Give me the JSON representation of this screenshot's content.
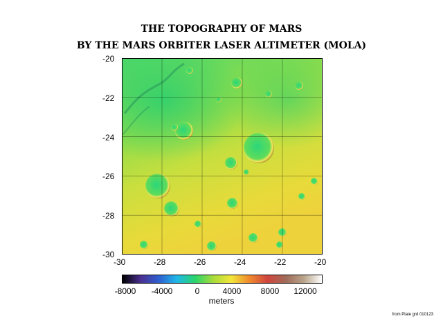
{
  "title_line1": "THE TOPOGRAPHY OF MARS",
  "title_line2": "BY THE MARS ORBITER LASER ALTIMETER (MOLA)",
  "map": {
    "x_ticks": [
      "-30",
      "-28",
      "-26",
      "-24",
      "-22",
      "-20"
    ],
    "y_ticks": [
      "-20",
      "-22",
      "-24",
      "-26",
      "-28",
      "-30"
    ],
    "xlim": [
      -30,
      -20
    ],
    "ylim": [
      -30,
      -20
    ],
    "grid": true
  },
  "colorbar": {
    "tick_labels": [
      "-8000",
      "-4000",
      "0",
      "4000",
      "8000",
      "12000"
    ],
    "tick_values": [
      -8000,
      -4000,
      0,
      4000,
      8000,
      12000
    ],
    "range": [
      -8000,
      12000
    ],
    "units": "meters",
    "colors": [
      "#000000",
      "#4a2f8f",
      "#2e5fd0",
      "#1fb8e8",
      "#29d46a",
      "#a8dc3a",
      "#f2e63a",
      "#f08a2e",
      "#d0453d",
      "#a06a58",
      "#b8a48a",
      "#ffffff"
    ]
  },
  "source_note": "from Plate grd 010123"
}
